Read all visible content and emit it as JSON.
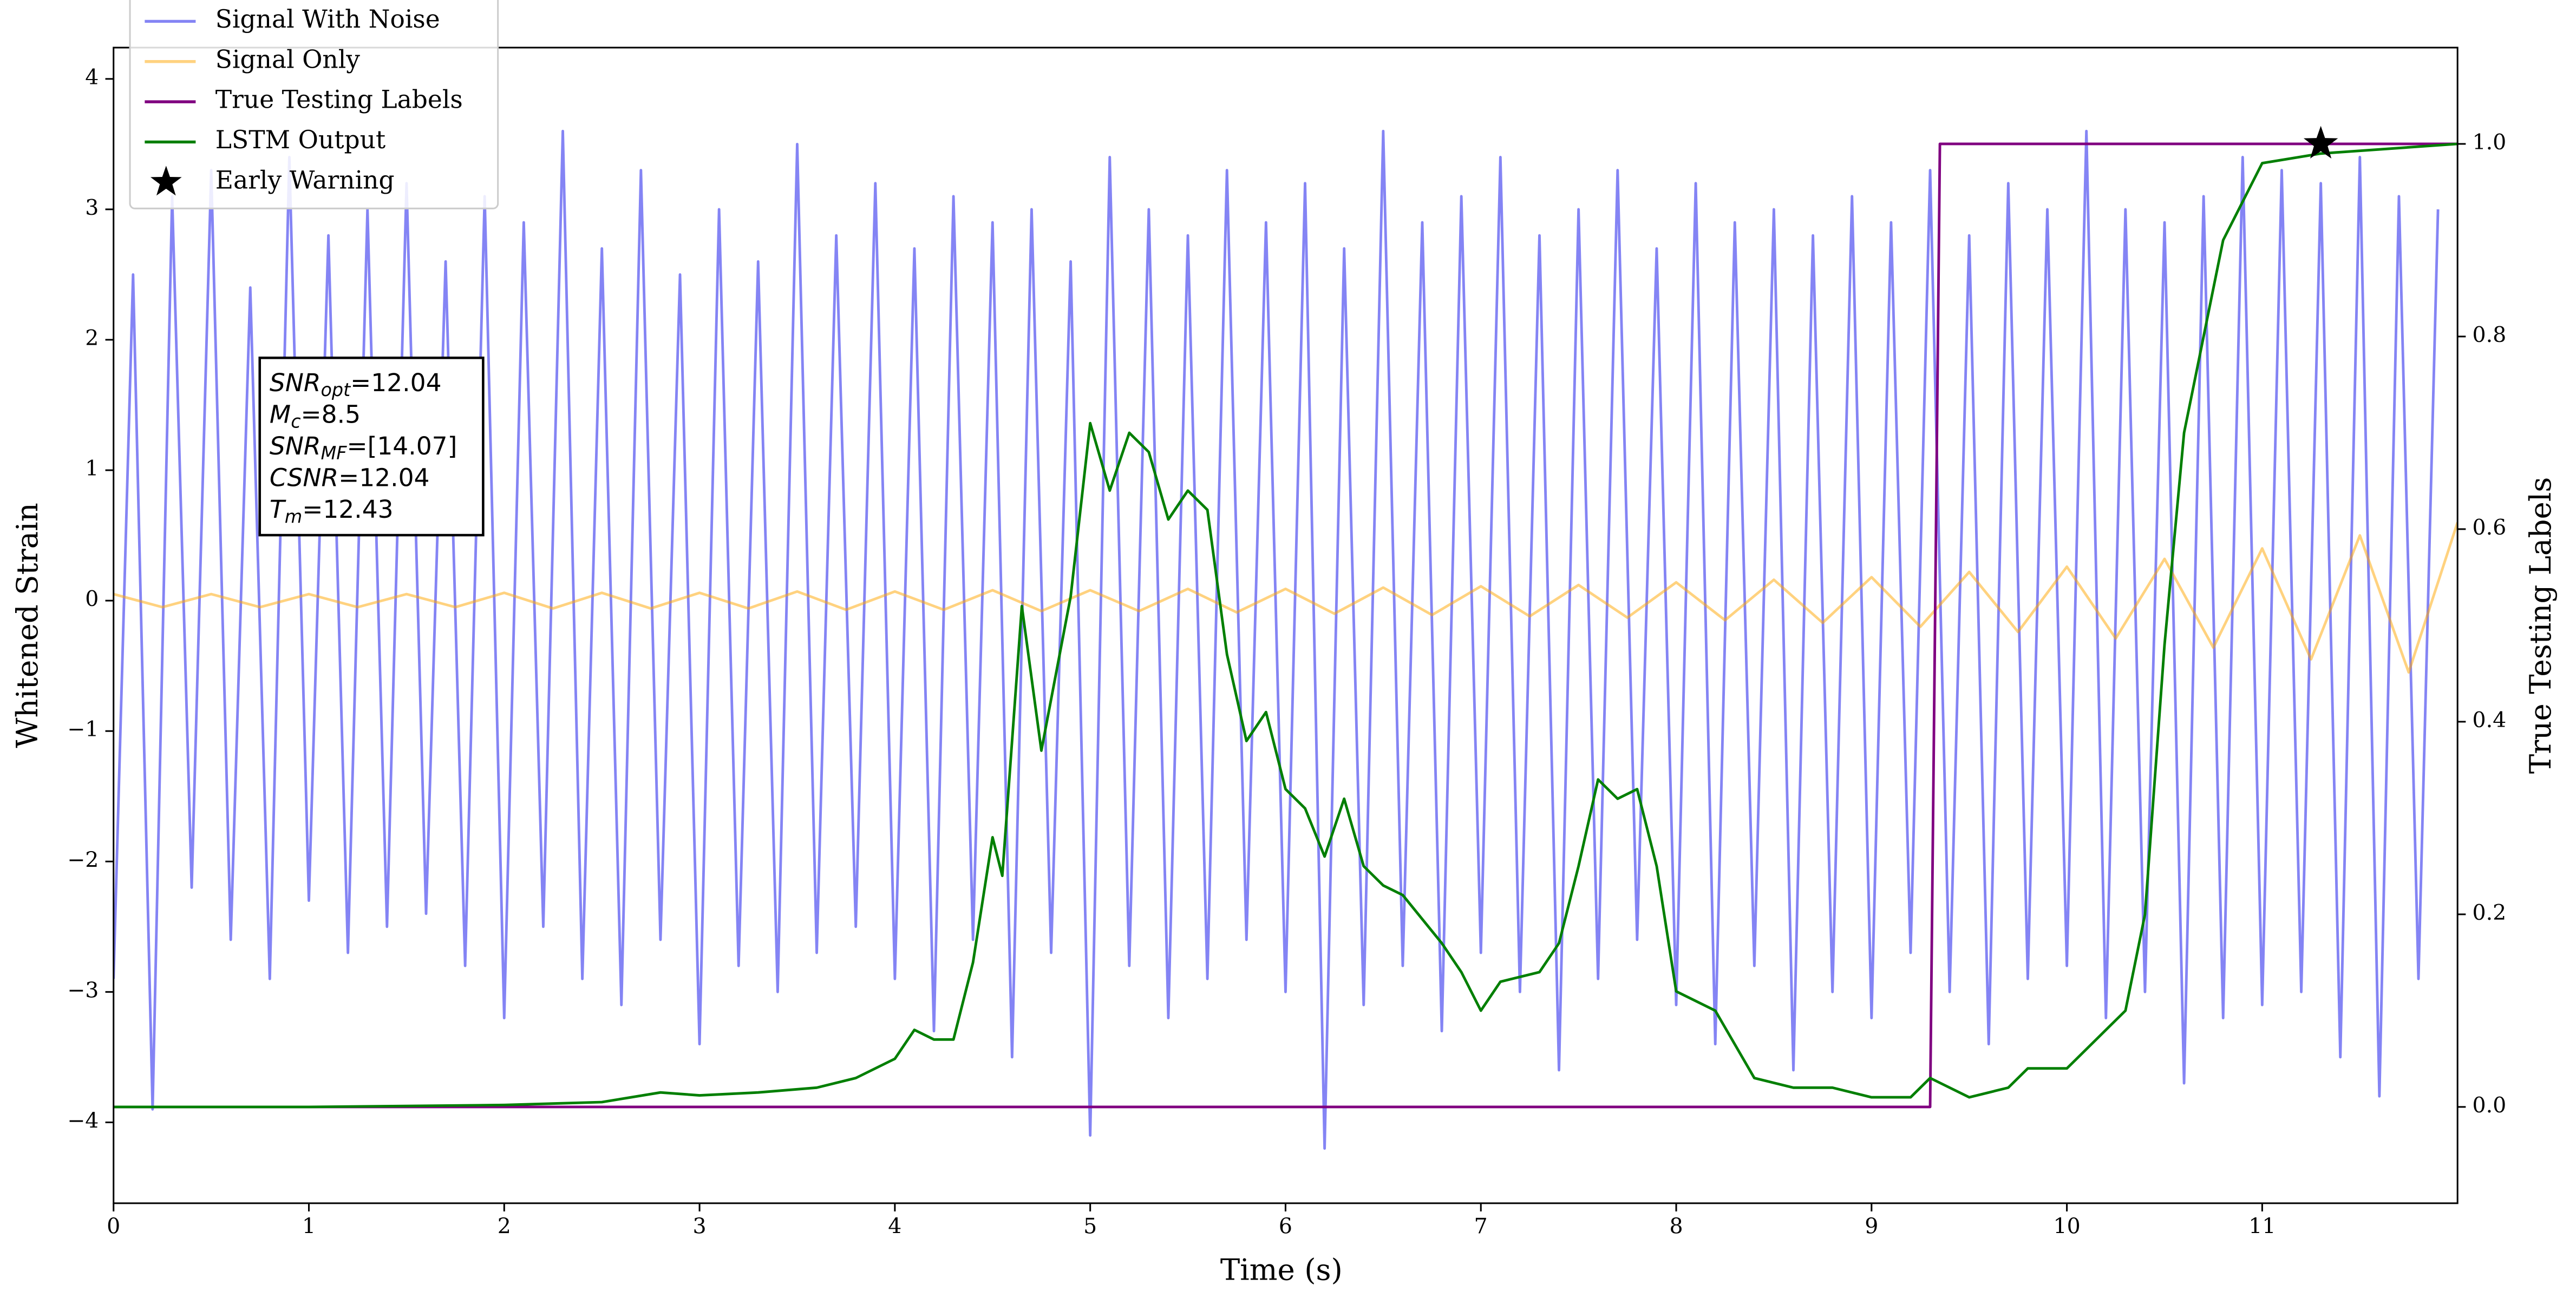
{
  "chart_data": {
    "type": "line",
    "xlabel": "Time (s)",
    "ylabel": "Whitened Strain",
    "y2label": "True Testing Labels",
    "xlim": [
      0,
      12
    ],
    "ylim": [
      -4.62,
      4.24
    ],
    "y2lim": [
      -0.1,
      1.1
    ],
    "xticks": [
      0,
      1,
      2,
      3,
      4,
      5,
      6,
      7,
      8,
      9,
      10,
      11
    ],
    "yticks": [
      -4,
      -3,
      -2,
      -1,
      0,
      1,
      2,
      3,
      4
    ],
    "y2ticks": [
      {
        "value": 0,
        "label": "0.0"
      },
      {
        "value": 0.2,
        "label": "0.2"
      },
      {
        "value": 0.4,
        "label": "0.4"
      },
      {
        "value": 0.6,
        "label": "0.6"
      },
      {
        "value": 0.8,
        "label": "0.8"
      },
      {
        "value": 1,
        "label": "1.0"
      }
    ],
    "legend": "upper left",
    "annotation": [
      {
        "text": "SNR",
        "sub": "opt",
        "value": "=12.04"
      },
      {
        "text": "M",
        "sub": "c",
        "value": "=8.5"
      },
      {
        "text": "SNR",
        "sub": "MF",
        "value": "=[14.07]"
      },
      {
        "text": "CSNR",
        "value": "=12.04"
      },
      {
        "text": "T",
        "sub": "m",
        "value": "=12.43"
      }
    ],
    "series": [
      {
        "name": "Signal With Noise",
        "color": "#6f6ff2",
        "opacity": 0.85,
        "x": [
          0,
          0.1,
          0.2,
          0.3,
          0.4,
          0.5,
          0.6,
          0.7,
          0.8,
          0.9,
          1,
          1.1,
          1.2,
          1.3,
          1.4,
          1.5,
          1.6,
          1.7,
          1.8,
          1.9,
          2,
          2.1,
          2.2,
          2.3,
          2.4,
          2.5,
          2.6,
          2.7,
          2.8,
          2.9,
          3,
          3.1,
          3.2,
          3.3,
          3.4,
          3.5,
          3.6,
          3.7,
          3.8,
          3.9,
          4,
          4.1,
          4.2,
          4.3,
          4.4,
          4.5,
          4.6,
          4.7,
          4.8,
          4.9,
          5,
          5.1,
          5.2,
          5.3,
          5.4,
          5.5,
          5.6,
          5.7,
          5.8,
          5.9,
          6,
          6.1,
          6.2,
          6.3,
          6.4,
          6.5,
          6.6,
          6.7,
          6.8,
          6.9,
          7,
          7.1,
          7.2,
          7.3,
          7.4,
          7.5,
          7.6,
          7.7,
          7.8,
          7.9,
          8,
          8.1,
          8.2,
          8.3,
          8.4,
          8.5,
          8.6,
          8.7,
          8.8,
          8.9,
          9,
          9.1,
          9.2,
          9.3,
          9.4,
          9.5,
          9.6,
          9.7,
          9.8,
          9.9,
          10,
          10.1,
          10.2,
          10.3,
          10.4,
          10.5,
          10.6,
          10.7,
          10.8,
          10.9,
          11,
          11.1,
          11.2,
          11.3,
          11.4,
          11.5,
          11.6,
          11.7,
          11.8,
          11.9
        ],
        "values": [
          -2.9,
          2.5,
          -3.9,
          3.1,
          -2.2,
          3.3,
          -2.6,
          2.4,
          -2.9,
          3.4,
          -2.3,
          2.8,
          -2.7,
          3.0,
          -2.5,
          3.2,
          -2.4,
          2.6,
          -2.8,
          3.1,
          -3.2,
          2.9,
          -2.5,
          3.6,
          -2.9,
          2.7,
          -3.1,
          3.3,
          -2.6,
          2.5,
          -3.4,
          3.0,
          -2.8,
          2.6,
          -3.0,
          3.5,
          -2.7,
          2.8,
          -2.5,
          3.2,
          -2.9,
          2.7,
          -3.3,
          3.1,
          -2.6,
          2.9,
          -3.5,
          3.0,
          -2.7,
          2.6,
          -4.1,
          3.4,
          -2.8,
          3.0,
          -3.2,
          2.8,
          -2.9,
          3.3,
          -2.6,
          2.9,
          -3.0,
          3.2,
          -4.2,
          2.7,
          -3.1,
          3.6,
          -2.8,
          2.9,
          -3.3,
          3.1,
          -2.7,
          3.4,
          -3.0,
          2.8,
          -3.6,
          3.0,
          -2.9,
          3.3,
          -2.6,
          2.7,
          -3.1,
          3.2,
          -3.4,
          2.9,
          -2.8,
          3.0,
          -3.6,
          2.8,
          -3.0,
          3.1,
          -3.2,
          2.9,
          -2.7,
          3.3,
          -3.0,
          2.8,
          -3.4,
          3.2,
          -2.9,
          3.0,
          -2.8,
          3.6,
          -3.2,
          3.0,
          -3.0,
          2.9,
          -3.7,
          3.1,
          -3.2,
          3.4,
          -3.1,
          3.3,
          -3.0,
          3.2,
          -3.5,
          3.4,
          -3.8,
          3.1,
          -2.9,
          3.0
        ]
      },
      {
        "name": "Signal Only",
        "color": "#ffa500",
        "opacity": 0.5,
        "x": [
          0,
          0.25,
          0.5,
          0.75,
          1,
          1.25,
          1.5,
          1.75,
          2,
          2.25,
          2.5,
          2.75,
          3,
          3.25,
          3.5,
          3.75,
          4,
          4.25,
          4.5,
          4.75,
          5,
          5.25,
          5.5,
          5.75,
          6,
          6.25,
          6.5,
          6.75,
          7,
          7.25,
          7.5,
          7.75,
          8,
          8.25,
          8.5,
          8.75,
          9,
          9.25,
          9.5,
          9.75,
          10,
          10.25,
          10.5,
          10.75,
          11,
          11.25,
          11.5,
          11.75,
          12
        ],
        "values": [
          0.05,
          -0.05,
          0.05,
          -0.05,
          0.05,
          -0.05,
          0.05,
          -0.05,
          0.06,
          -0.06,
          0.06,
          -0.06,
          0.06,
          -0.06,
          0.07,
          -0.07,
          0.07,
          -0.07,
          0.08,
          -0.08,
          0.08,
          -0.08,
          0.09,
          -0.09,
          0.09,
          -0.1,
          0.1,
          -0.11,
          0.11,
          -0.12,
          0.12,
          -0.13,
          0.14,
          -0.15,
          0.16,
          -0.17,
          0.18,
          -0.2,
          0.22,
          -0.24,
          0.26,
          -0.29,
          0.32,
          -0.36,
          0.4,
          -0.45,
          0.5,
          -0.55,
          0.6
        ]
      },
      {
        "name": "True Testing Labels",
        "color": "#800080",
        "axis": "y2",
        "x": [
          0,
          9.3,
          9.35,
          12
        ],
        "values": [
          0,
          0,
          1,
          1
        ]
      },
      {
        "name": "LSTM Output",
        "color": "#007f00",
        "axis": "y2",
        "x": [
          0,
          1,
          2,
          2.5,
          2.8,
          3,
          3.3,
          3.6,
          3.8,
          4,
          4.1,
          4.2,
          4.3,
          4.4,
          4.5,
          4.55,
          4.65,
          4.75,
          4.9,
          5,
          5.1,
          5.2,
          5.3,
          5.4,
          5.5,
          5.6,
          5.7,
          5.8,
          5.9,
          6,
          6.1,
          6.2,
          6.3,
          6.4,
          6.5,
          6.6,
          6.8,
          6.9,
          7,
          7.1,
          7.3,
          7.4,
          7.5,
          7.6,
          7.7,
          7.8,
          7.9,
          8,
          8.2,
          8.4,
          8.6,
          8.8,
          9,
          9.2,
          9.3,
          9.5,
          9.7,
          9.8,
          10,
          10.2,
          10.3,
          10.4,
          10.5,
          10.6,
          10.8,
          11,
          11.3,
          12
        ],
        "values": [
          0,
          0,
          0.002,
          0.005,
          0.015,
          0.012,
          0.015,
          0.02,
          0.03,
          0.05,
          0.08,
          0.07,
          0.07,
          0.15,
          0.28,
          0.24,
          0.52,
          0.37,
          0.53,
          0.71,
          0.64,
          0.7,
          0.68,
          0.61,
          0.64,
          0.62,
          0.47,
          0.38,
          0.41,
          0.33,
          0.31,
          0.26,
          0.32,
          0.25,
          0.23,
          0.22,
          0.17,
          0.14,
          0.1,
          0.13,
          0.14,
          0.17,
          0.25,
          0.34,
          0.32,
          0.33,
          0.25,
          0.12,
          0.1,
          0.03,
          0.02,
          0.02,
          0.01,
          0.01,
          0.03,
          0.01,
          0.02,
          0.04,
          0.04,
          0.08,
          0.1,
          0.2,
          0.48,
          0.7,
          0.9,
          0.98,
          0.99,
          1.0
        ]
      },
      {
        "name": "Early Warning",
        "color": "#000000",
        "axis": "y2",
        "marker": "star",
        "x": [
          11.3
        ],
        "values": [
          1.0
        ]
      }
    ]
  }
}
